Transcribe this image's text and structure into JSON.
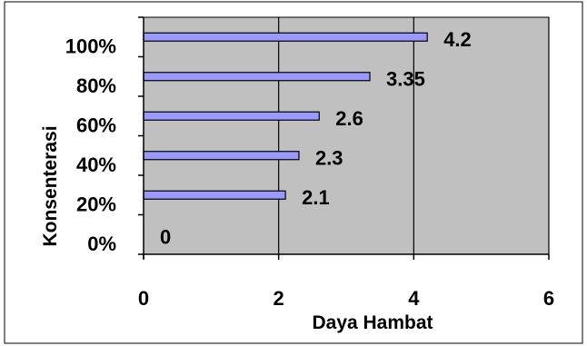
{
  "chart_data": {
    "type": "bar",
    "orientation": "horizontal",
    "categories": [
      "0%",
      "20%",
      "40%",
      "60%",
      "80%",
      "100%"
    ],
    "values": [
      0,
      2.1,
      2.3,
      2.6,
      3.35,
      4.2
    ],
    "data_labels": [
      "0",
      "2.1",
      "2.3",
      "2.6",
      "3.35",
      "4.2"
    ],
    "x_ticks": [
      "0",
      "2",
      "4",
      "6"
    ],
    "xlabel": "Daya Hambat",
    "ylabel": "Konsenterasi",
    "xlim": [
      0,
      6
    ],
    "grid": "vertical",
    "legend": "none",
    "colors": {
      "plot_background": "#c0c0c0",
      "bar_fill": "#9999ff",
      "bar_stroke": "#000000",
      "gridline": "#000000",
      "frame": "#000000"
    }
  }
}
